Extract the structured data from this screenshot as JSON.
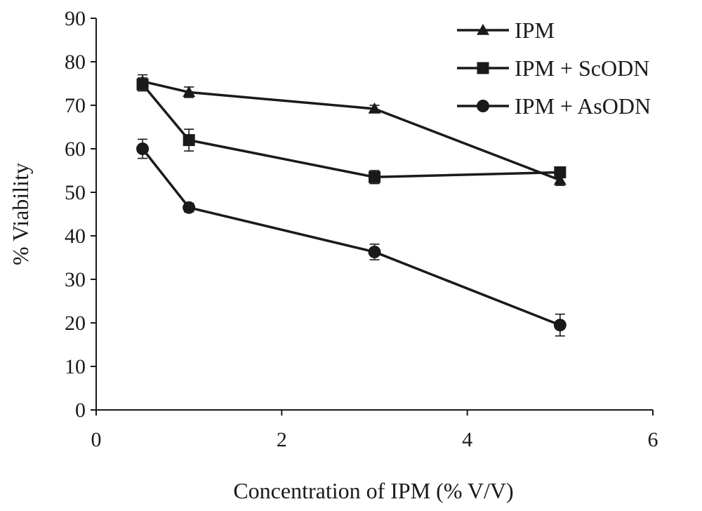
{
  "chart_data": {
    "type": "line",
    "xlabel": "Concentration of IPM (% V/V)",
    "ylabel": "% Viability",
    "xlim": [
      0,
      6
    ],
    "ylim": [
      0,
      90
    ],
    "x_ticks": [
      0,
      2,
      4,
      6
    ],
    "y_ticks": [
      0,
      10,
      20,
      30,
      40,
      50,
      60,
      70,
      80,
      90
    ],
    "grid": false,
    "legend_position": "top-right",
    "series": [
      {
        "name": "IPM",
        "marker": "triangle",
        "x": [
          0.5,
          1,
          3,
          5
        ],
        "values": [
          75.5,
          73,
          69.2,
          52.8
        ],
        "errors": [
          1.5,
          1.2,
          0.8,
          1.2
        ]
      },
      {
        "name": "IPM + ScODN",
        "marker": "square",
        "x": [
          0.5,
          1,
          3,
          5
        ],
        "values": [
          74.8,
          62,
          53.5,
          54.6
        ],
        "errors": [
          1.5,
          2.5,
          1.5,
          1.2
        ]
      },
      {
        "name": "IPM + AsODN",
        "marker": "circle",
        "x": [
          0.5,
          1,
          3,
          5
        ],
        "values": [
          60,
          46.5,
          36.3,
          19.5
        ],
        "errors": [
          2.2,
          1.0,
          1.8,
          2.5
        ]
      }
    ]
  },
  "colors": {
    "line": "#1a1a1a",
    "axis": "#1a1a1a"
  }
}
